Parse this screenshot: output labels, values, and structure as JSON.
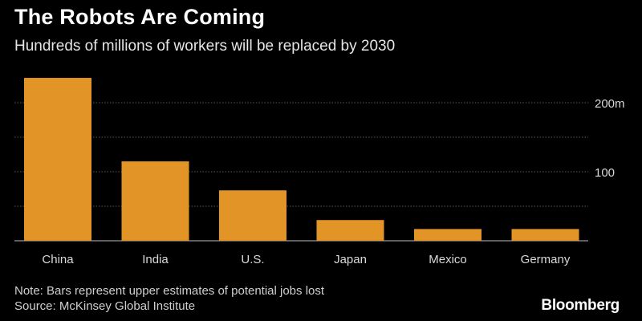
{
  "header": {
    "title": "The Robots Are Coming",
    "subtitle": "Hundreds of millions of workers will be replaced by 2030"
  },
  "footer": {
    "note": "Note: Bars represent upper estimates of potential jobs lost",
    "source": "Source: McKinsey Global Institute",
    "brand": "Bloomberg"
  },
  "colors": {
    "bar": "#E39426",
    "grid": "#5a5a5a",
    "baseline": "#bdbdbd",
    "tick_label": "#d9d9d9"
  },
  "chart_data": {
    "type": "bar",
    "title": "The Robots Are Coming",
    "subtitle": "Hundreds of millions of workers will be replaced by 2030",
    "categories": [
      "China",
      "India",
      "U.S.",
      "Japan",
      "Mexico",
      "Germany"
    ],
    "values": [
      236,
      115,
      73,
      30,
      17,
      17
    ],
    "unit": "m",
    "xlabel": "",
    "ylabel": "",
    "ylim": [
      0,
      230
    ],
    "yticks": [
      0,
      50,
      100,
      150,
      200
    ],
    "ytick_labels": [
      "",
      "",
      "100",
      "",
      "200m"
    ],
    "grid": true,
    "axis_side": "right",
    "legend": "none"
  }
}
